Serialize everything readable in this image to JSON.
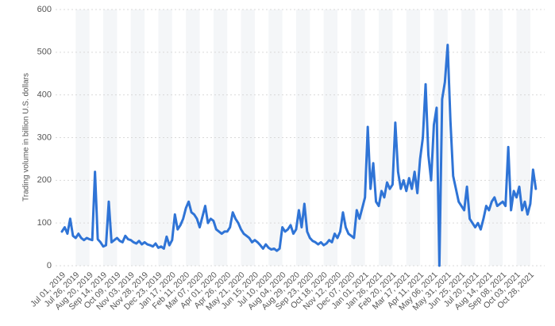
{
  "chart_data": {
    "type": "line",
    "y_label": "Trading volume in billion U.S. dollars",
    "color": "#2f74d6",
    "grid": true,
    "ylim": [
      0,
      600
    ],
    "yticks": [
      0,
      100,
      200,
      300,
      400,
      500,
      600
    ],
    "categories": [
      "Jul 01, 2019",
      null,
      null,
      null,
      null,
      "Jul 26, 2019",
      null,
      null,
      null,
      null,
      "Aug 20, 2019",
      null,
      null,
      null,
      null,
      "Sep 14, 2019",
      null,
      null,
      null,
      null,
      "Oct 09, 2019",
      null,
      null,
      null,
      null,
      "Nov 03, 2019",
      null,
      null,
      null,
      null,
      "Nov 28, 2019",
      null,
      null,
      null,
      null,
      "Dec 23, 2019",
      null,
      null,
      null,
      null,
      "Jan 17, 2020",
      null,
      null,
      null,
      null,
      "Feb 11, 2020",
      null,
      null,
      null,
      null,
      "Mar 07, 2020",
      null,
      null,
      null,
      null,
      "Apr 01, 2020",
      null,
      null,
      null,
      null,
      "Apr 26, 2020",
      null,
      null,
      null,
      null,
      "May 21, 2020",
      null,
      null,
      null,
      null,
      "Jun 15, 2020",
      null,
      null,
      null,
      null,
      "Jul 10, 2020",
      null,
      null,
      null,
      null,
      "Aug 04, 2020",
      null,
      null,
      null,
      null,
      "Aug 29, 2020",
      null,
      null,
      null,
      null,
      "Sep 23, 2020",
      null,
      null,
      null,
      null,
      "Oct 18, 2020",
      null,
      null,
      null,
      null,
      "Nov 12, 2020",
      null,
      null,
      null,
      null,
      "Dec 07, 2020",
      null,
      null,
      null,
      null,
      "Jan 01, 2021",
      null,
      null,
      null,
      null,
      "Jan 26, 2021",
      null,
      null,
      null,
      null,
      "Feb 20, 2021",
      null,
      null,
      null,
      null,
      "Mar 17, 2021",
      null,
      null,
      null,
      null,
      "Apr 11, 2021",
      null,
      null,
      null,
      null,
      "May 06, 2021",
      null,
      null,
      null,
      null,
      "May 31, 2021",
      null,
      null,
      null,
      null,
      "Jun 25, 2021",
      null,
      null,
      null,
      null,
      "Jul 20, 2021",
      null,
      null,
      null,
      null,
      "Aug 14, 2021",
      null,
      null,
      null,
      null,
      "Sep 08, 2021",
      null,
      null,
      null,
      null,
      "Oct 03, 2021",
      null,
      null,
      null,
      null,
      "Oct 28, 2021",
      null,
      null
    ],
    "values": [
      80,
      90,
      75,
      110,
      70,
      65,
      75,
      65,
      60,
      65,
      62,
      60,
      220,
      62,
      55,
      45,
      48,
      150,
      55,
      60,
      65,
      58,
      55,
      70,
      62,
      60,
      55,
      52,
      58,
      50,
      55,
      50,
      48,
      45,
      52,
      42,
      45,
      40,
      68,
      48,
      60,
      120,
      85,
      95,
      110,
      135,
      150,
      125,
      120,
      110,
      90,
      115,
      140,
      100,
      110,
      105,
      85,
      80,
      75,
      80,
      80,
      90,
      125,
      110,
      100,
      85,
      75,
      70,
      65,
      55,
      60,
      55,
      48,
      40,
      50,
      42,
      38,
      40,
      35,
      40,
      90,
      80,
      85,
      95,
      75,
      85,
      130,
      90,
      145,
      80,
      65,
      58,
      55,
      50,
      55,
      48,
      52,
      60,
      55,
      75,
      65,
      80,
      125,
      90,
      75,
      70,
      65,
      130,
      110,
      135,
      160,
      325,
      180,
      240,
      150,
      140,
      175,
      160,
      195,
      180,
      190,
      335,
      220,
      180,
      200,
      175,
      205,
      180,
      220,
      170,
      250,
      300,
      425,
      260,
      200,
      330,
      370,
      0,
      390,
      430,
      517,
      340,
      210,
      180,
      150,
      140,
      130,
      185,
      110,
      100,
      90,
      100,
      85,
      110,
      140,
      130,
      150,
      160,
      140,
      145,
      150,
      140,
      278,
      130,
      175,
      160,
      185,
      130,
      150,
      120,
      145,
      225,
      180
    ]
  }
}
